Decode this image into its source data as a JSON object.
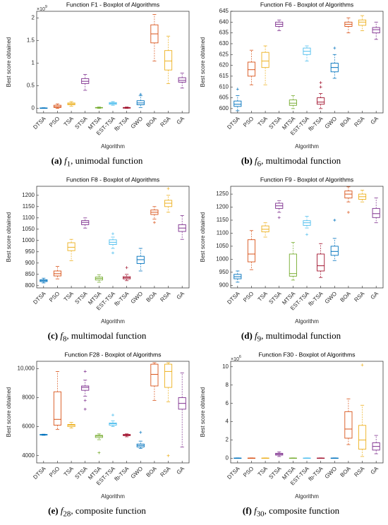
{
  "chart_data": [
    {
      "type": "boxplot",
      "title": "Function F1 - Boxplot of Algorithms",
      "xlabel": "Algorithm",
      "ylabel": "Best score obtained",
      "y_multiplier": {
        "base": "×10",
        "exponent": "9"
      },
      "categories": [
        "DTSA",
        "PSO",
        "TSA",
        "STSA",
        "MTSA",
        "EST-TSA",
        "fb-TSA",
        "GWO",
        "BOA",
        "RSA",
        "GA"
      ],
      "colors": [
        "#0072bd",
        "#d95319",
        "#edb120",
        "#7e2f8e",
        "#77ac30",
        "#4dbeee",
        "#a2142f",
        "#0072bd",
        "#d95319",
        "#edb120",
        "#7e2f8e"
      ],
      "boxes": [
        {
          "min": 0,
          "q1": 0,
          "median": 0.005,
          "q3": 0.01,
          "max": 0.015
        },
        {
          "min": 0,
          "q1": 0.02,
          "median": 0.04,
          "q3": 0.07,
          "max": 0.1
        },
        {
          "min": 0.05,
          "q1": 0.08,
          "median": 0.1,
          "q3": 0.12,
          "max": 0.15
        },
        {
          "min": 0.4,
          "q1": 0.55,
          "median": 0.6,
          "q3": 0.66,
          "max": 0.75
        },
        {
          "min": 0,
          "q1": 0.01,
          "median": 0.015,
          "q3": 0.02,
          "max": 0.03
        },
        {
          "min": 0.07,
          "q1": 0.09,
          "median": 0.11,
          "q3": 0.13,
          "max": 0.15
        },
        {
          "min": 0,
          "q1": 0.005,
          "median": 0.01,
          "q3": 0.02,
          "max": 0.03
        },
        {
          "min": 0.02,
          "q1": 0.08,
          "median": 0.12,
          "q3": 0.17,
          "max": 0.28,
          "outliers": [
            0.31
          ]
        },
        {
          "min": 1.05,
          "q1": 1.45,
          "median": 1.65,
          "q3": 1.85,
          "max": 2.08
        },
        {
          "min": 0.55,
          "q1": 0.85,
          "median": 1.05,
          "q3": 1.28,
          "max": 1.6
        },
        {
          "min": 0.45,
          "q1": 0.58,
          "median": 0.62,
          "q3": 0.68,
          "max": 0.78
        }
      ],
      "ylim": [
        -0.1,
        2.15
      ],
      "yticks": [
        0,
        0.5,
        1,
        1.5,
        2
      ],
      "caption": {
        "label": "(a)",
        "symbol": "f",
        "index": "1",
        "text": ", unimodal function"
      }
    },
    {
      "type": "boxplot",
      "title": "Function F6 - Boxplot of Algorithms",
      "xlabel": "Algorithm",
      "ylabel": "Best score obtained",
      "categories": [
        "DTSA",
        "PSO",
        "TSA",
        "STSA",
        "MTSA",
        "EST-TSA",
        "fb-TSA",
        "GWO",
        "BOA",
        "RSA",
        "GA"
      ],
      "colors": [
        "#0072bd",
        "#d95319",
        "#edb120",
        "#7e2f8e",
        "#77ac30",
        "#4dbeee",
        "#a2142f",
        "#0072bd",
        "#d95319",
        "#edb120",
        "#7e2f8e"
      ],
      "boxes": [
        {
          "min": 599,
          "q1": 601,
          "median": 602,
          "q3": 603.5,
          "max": 606,
          "outliers": [
            609
          ]
        },
        {
          "min": 611,
          "q1": 615,
          "median": 618,
          "q3": 621.5,
          "max": 627
        },
        {
          "min": 611,
          "q1": 619,
          "median": 622,
          "q3": 626,
          "max": 629
        },
        {
          "min": 636,
          "q1": 638,
          "median": 639,
          "q3": 640,
          "max": 641
        },
        {
          "min": 600,
          "q1": 601.5,
          "median": 602.5,
          "q3": 604,
          "max": 606
        },
        {
          "min": 622,
          "q1": 625,
          "median": 626.5,
          "q3": 628,
          "max": 629
        },
        {
          "min": 600,
          "q1": 602,
          "median": 603,
          "q3": 605,
          "max": 607,
          "outliers": [
            610,
            612
          ]
        },
        {
          "min": 614,
          "q1": 617,
          "median": 619,
          "q3": 621,
          "max": 625,
          "outliers": [
            628
          ]
        },
        {
          "min": 635,
          "q1": 638,
          "median": 639,
          "q3": 640,
          "max": 642
        },
        {
          "min": 636,
          "q1": 638.5,
          "median": 640,
          "q3": 641,
          "max": 643
        },
        {
          "min": 632,
          "q1": 635,
          "median": 636.5,
          "q3": 637.5,
          "max": 640
        }
      ],
      "ylim": [
        598,
        645
      ],
      "yticks": [
        600,
        605,
        610,
        615,
        620,
        625,
        630,
        635,
        640,
        645
      ],
      "caption": {
        "label": "(b)",
        "symbol": "f",
        "index": "6",
        "text": ", multimodal function"
      }
    },
    {
      "type": "boxplot",
      "title": "Function F8 - Boxplot of Algorithms",
      "xlabel": "Algorithm",
      "ylabel": "Best score obtained",
      "categories": [
        "DTSA",
        "PSO",
        "TSA",
        "STSA",
        "MTSA",
        "EST-TSA",
        "fb-TSA",
        "GWO",
        "BOA",
        "RSA",
        "GA"
      ],
      "colors": [
        "#0072bd",
        "#d95319",
        "#edb120",
        "#7e2f8e",
        "#77ac30",
        "#4dbeee",
        "#a2142f",
        "#0072bd",
        "#d95319",
        "#edb120",
        "#7e2f8e"
      ],
      "boxes": [
        {
          "min": 812,
          "q1": 818,
          "median": 822,
          "q3": 826,
          "max": 833
        },
        {
          "min": 830,
          "q1": 843,
          "median": 853,
          "q3": 865,
          "max": 885
        },
        {
          "min": 910,
          "q1": 955,
          "median": 970,
          "q3": 990,
          "max": 1005
        },
        {
          "min": 1055,
          "q1": 1070,
          "median": 1080,
          "q3": 1088,
          "max": 1100
        },
        {
          "min": 815,
          "q1": 825,
          "median": 832,
          "q3": 838,
          "max": 848
        },
        {
          "min": 965,
          "q1": 982,
          "median": 992,
          "q3": 1003,
          "max": 1015,
          "outliers": [
            945,
            1030
          ]
        },
        {
          "min": 822,
          "q1": 830,
          "median": 835,
          "q3": 840,
          "max": 850,
          "outliers": [
            880
          ]
        },
        {
          "min": 865,
          "q1": 898,
          "median": 915,
          "q3": 930,
          "max": 965
        },
        {
          "min": 1095,
          "q1": 1115,
          "median": 1125,
          "q3": 1135,
          "max": 1150,
          "outliers": [
            1080
          ]
        },
        {
          "min": 1125,
          "q1": 1150,
          "median": 1165,
          "q3": 1178,
          "max": 1200,
          "outliers": [
            1230
          ]
        },
        {
          "min": 1005,
          "q1": 1040,
          "median": 1055,
          "q3": 1070,
          "max": 1110
        }
      ],
      "ylim": [
        790,
        1240
      ],
      "yticks": [
        800,
        850,
        900,
        950,
        1000,
        1050,
        1100,
        1150,
        1200
      ],
      "caption": {
        "label": "(c)",
        "symbol": "f",
        "index": "8",
        "text": ", multimodal function"
      }
    },
    {
      "type": "boxplot",
      "title": "Function F9 - Boxplot of Algorithms",
      "xlabel": "Algorithm",
      "ylabel": "Best score obtained",
      "categories": [
        "DTSA",
        "PSO",
        "TSA",
        "STSA",
        "MTSA",
        "EST-TSA",
        "fb-TSA",
        "GWO",
        "BOA",
        "RSA",
        "GA"
      ],
      "colors": [
        "#0072bd",
        "#d95319",
        "#edb120",
        "#7e2f8e",
        "#77ac30",
        "#4dbeee",
        "#a2142f",
        "#0072bd",
        "#d95319",
        "#edb120",
        "#7e2f8e"
      ],
      "boxes": [
        {
          "min": 912,
          "q1": 925,
          "median": 933,
          "q3": 942,
          "max": 955
        },
        {
          "min": 960,
          "q1": 990,
          "median": 1020,
          "q3": 1075,
          "max": 1110
        },
        {
          "min": 1085,
          "q1": 1105,
          "median": 1115,
          "q3": 1128,
          "max": 1140
        },
        {
          "min": 1180,
          "q1": 1195,
          "median": 1205,
          "q3": 1215,
          "max": 1225,
          "outliers": [
            1160
          ]
        },
        {
          "min": 920,
          "q1": 935,
          "median": 945,
          "q3": 1020,
          "max": 1065
        },
        {
          "min": 1120,
          "q1": 1130,
          "median": 1140,
          "q3": 1148,
          "max": 1165,
          "outliers": [
            1095
          ]
        },
        {
          "min": 930,
          "q1": 955,
          "median": 975,
          "q3": 1020,
          "max": 1060
        },
        {
          "min": 995,
          "q1": 1015,
          "median": 1030,
          "q3": 1050,
          "max": 1080,
          "outliers": [
            1150
          ]
        },
        {
          "min": 1220,
          "q1": 1235,
          "median": 1250,
          "q3": 1262,
          "max": 1278,
          "outliers": [
            1180
          ]
        },
        {
          "min": 1220,
          "q1": 1230,
          "median": 1240,
          "q3": 1250,
          "max": 1265
        },
        {
          "min": 1140,
          "q1": 1160,
          "median": 1175,
          "q3": 1195,
          "max": 1235
        }
      ],
      "ylim": [
        890,
        1280
      ],
      "yticks": [
        900,
        950,
        1000,
        1050,
        1100,
        1150,
        1200,
        1250
      ],
      "caption": {
        "label": "(d)",
        "symbol": "f",
        "index": "9",
        "text": ", multimodal function"
      }
    },
    {
      "type": "boxplot",
      "title": "Function F28 - Boxplot of Algorithms",
      "xlabel": "Algorithm",
      "ylabel": "Best score obtained",
      "categories": [
        "DTSA",
        "PSO",
        "TSA",
        "STSA",
        "MTSA",
        "EST-TSA",
        "fb-TSA",
        "GWO",
        "BOA",
        "RSA",
        "GA"
      ],
      "colors": [
        "#0072bd",
        "#d95319",
        "#edb120",
        "#7e2f8e",
        "#77ac30",
        "#4dbeee",
        "#a2142f",
        "#0072bd",
        "#d95319",
        "#edb120",
        "#7e2f8e"
      ],
      "boxes": [
        {
          "min": 5400,
          "q1": 5420,
          "median": 5440,
          "q3": 5460,
          "max": 5480
        },
        {
          "min": 5800,
          "q1": 6100,
          "median": 6500,
          "q3": 8400,
          "max": 9800
        },
        {
          "min": 5900,
          "q1": 6000,
          "median": 6100,
          "q3": 6150,
          "max": 6300
        },
        {
          "min": 8100,
          "q1": 8500,
          "median": 8700,
          "q3": 8800,
          "max": 9200,
          "outliers": [
            7200,
            7800,
            9800
          ]
        },
        {
          "min": 5100,
          "q1": 5250,
          "median": 5350,
          "q3": 5400,
          "max": 5500,
          "outliers": [
            4200
          ]
        },
        {
          "min": 6000,
          "q1": 6100,
          "median": 6200,
          "q3": 6250,
          "max": 6400,
          "outliers": [
            6800
          ]
        },
        {
          "min": 5300,
          "q1": 5380,
          "median": 5420,
          "q3": 5460,
          "max": 5500
        },
        {
          "min": 4500,
          "q1": 4600,
          "median": 4700,
          "q3": 4800,
          "max": 5000,
          "outliers": [
            5600
          ]
        },
        {
          "min": 7800,
          "q1": 8800,
          "median": 9600,
          "q3": 10300,
          "max": 10400
        },
        {
          "min": 7700,
          "q1": 8700,
          "median": 9800,
          "q3": 10300,
          "max": 10400,
          "outliers": [
            4000
          ]
        },
        {
          "min": 4600,
          "q1": 7200,
          "median": 7600,
          "q3": 8000,
          "max": 9700
        }
      ],
      "ylim": [
        3500,
        10500
      ],
      "yticks": [
        4000,
        6000,
        8000,
        {
          "value": 10000,
          "label": "10,000"
        }
      ],
      "caption": {
        "label": "(e)",
        "symbol": "f",
        "index": "28",
        "text": ", composite function"
      }
    },
    {
      "type": "boxplot",
      "title": "Function F30 - Boxplot of Algorithms",
      "xlabel": "Algorithm",
      "ylabel": "Best score obtained",
      "y_multiplier": {
        "base": "×10",
        "exponent": "6"
      },
      "categories": [
        "DTSA",
        "PSO",
        "TSA",
        "STSA",
        "MTSA",
        "EST-TSA",
        "fb-TSA",
        "GWO",
        "BOA",
        "RSA",
        "GA"
      ],
      "colors": [
        "#0072bd",
        "#d95319",
        "#edb120",
        "#7e2f8e",
        "#77ac30",
        "#4dbeee",
        "#a2142f",
        "#0072bd",
        "#d95319",
        "#edb120",
        "#7e2f8e"
      ],
      "boxes": [
        {
          "min": 0,
          "q1": 0.01,
          "median": 0.02,
          "q3": 0.03,
          "max": 0.05
        },
        {
          "min": 0,
          "q1": 0.01,
          "median": 0.02,
          "q3": 0.03,
          "max": 0.05
        },
        {
          "min": 0,
          "q1": 0.01,
          "median": 0.02,
          "q3": 0.03,
          "max": 0.05
        },
        {
          "min": 0.2,
          "q1": 0.35,
          "median": 0.45,
          "q3": 0.55,
          "max": 0.7
        },
        {
          "min": 0,
          "q1": 0.01,
          "median": 0.02,
          "q3": 0.03,
          "max": 0.05
        },
        {
          "min": 0,
          "q1": 0.01,
          "median": 0.02,
          "q3": 0.03,
          "max": 0.05
        },
        {
          "min": 0,
          "q1": 0.01,
          "median": 0.02,
          "q3": 0.03,
          "max": 0.05
        },
        {
          "min": 0,
          "q1": 0.01,
          "median": 0.02,
          "q3": 0.03,
          "max": 0.05
        },
        {
          "min": 1.5,
          "q1": 2.2,
          "median": 3.2,
          "q3": 5.1,
          "max": 6.5
        },
        {
          "min": 0.2,
          "q1": 1,
          "median": 2,
          "q3": 3.6,
          "max": 5.8,
          "outliers": [
            10.2
          ]
        },
        {
          "min": 0.5,
          "q1": 0.9,
          "median": 1.3,
          "q3": 1.7,
          "max": 2.5
        }
      ],
      "ylim": [
        -0.5,
        10.6
      ],
      "yticks": [
        0,
        2,
        4,
        6,
        8,
        10
      ],
      "caption": {
        "label": "(f)",
        "symbol": "f",
        "index": "30",
        "text": ", composite function"
      }
    }
  ]
}
